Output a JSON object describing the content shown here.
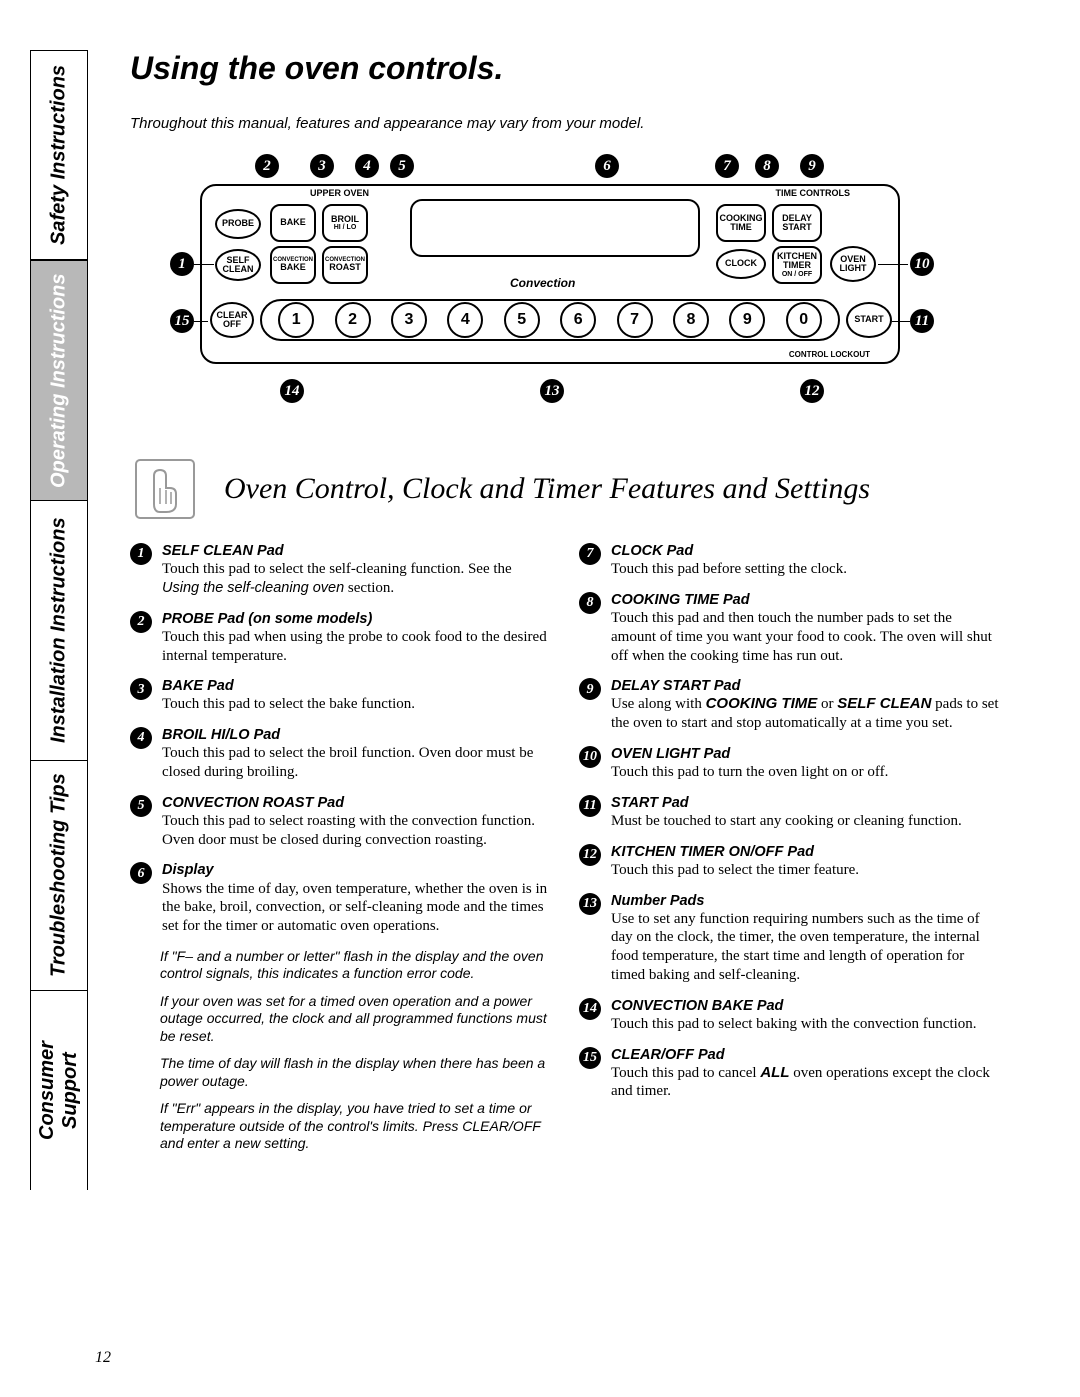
{
  "page": {
    "title": "Using the oven controls.",
    "intro": "Throughout this manual, features and appearance may vary from your model.",
    "section_title": "Oven Control, Clock and Timer Features and Settings",
    "page_number": "12"
  },
  "tabs": {
    "safety": "Safety Instructions",
    "operating": "Operating Instructions",
    "installation": "Installation Instructions",
    "troubleshoot": "Troubleshooting Tips",
    "consumer": "Consumer Support"
  },
  "diagram": {
    "upper_oven_label": "UPPER OVEN",
    "time_controls_label": "TIME CONTROLS",
    "convection_label": "Convection",
    "control_lockout_label": "CONTROL LOCKOUT",
    "buttons": {
      "probe": "PROBE",
      "bake": "BAKE",
      "broil": "BROIL",
      "broil_sub": "HI / LO",
      "self": "SELF",
      "clean": "CLEAN",
      "conv_bake_top": "CONVECTION",
      "conv_bake_bot": "BAKE",
      "conv_roast_top": "CONVECTION",
      "conv_roast_bot": "ROAST",
      "cooking": "COOKING",
      "time": "TIME",
      "delay": "DELAY",
      "start_top": "START",
      "clock": "CLOCK",
      "kitchen": "KITCHEN",
      "timer": "TIMER",
      "onoff": "ON / OFF",
      "oven": "OVEN",
      "light": "LIGHT",
      "clear": "CLEAR",
      "off": "OFF",
      "start": "START"
    },
    "number_pads": [
      "1",
      "2",
      "3",
      "4",
      "5",
      "6",
      "7",
      "8",
      "9",
      "0"
    ],
    "callouts": {
      "c1": "1",
      "c2": "2",
      "c3": "3",
      "c4": "4",
      "c5": "5",
      "c6": "6",
      "c7": "7",
      "c8": "8",
      "c9": "9",
      "c10": "10",
      "c11": "11",
      "c12": "12",
      "c13": "13",
      "c14": "14",
      "c15": "15"
    }
  },
  "items_left": [
    {
      "num": "1",
      "title": "SELF CLEAN Pad",
      "text": "Touch this pad to select the self-cleaning function. See the ",
      "ref": "Using the self-cleaning oven",
      "tail": " section."
    },
    {
      "num": "2",
      "title": "PROBE Pad (on some models)",
      "text": "Touch this pad when using the probe to cook food to the desired internal temperature."
    },
    {
      "num": "3",
      "title": "BAKE Pad",
      "text": "Touch this pad to select the bake function."
    },
    {
      "num": "4",
      "title": "BROIL HI/LO Pad",
      "text": "Touch this pad to select the broil function. Oven door must be closed during broiling."
    },
    {
      "num": "5",
      "title": "CONVECTION ROAST Pad",
      "text": "Touch this pad to select roasting with the convection function. Oven door must be closed during convection roasting."
    },
    {
      "num": "6",
      "title": "Display",
      "text": "Shows the time of day, oven temperature, whether the oven is in the bake, broil, convection, or self-cleaning mode and the times set for the timer or automatic oven operations."
    }
  ],
  "notes": [
    "If \"F– and a number or letter\" flash in the display and the oven control signals, this indicates a function error code.",
    "If your oven was set for a timed oven operation and a power outage occurred, the clock and all programmed functions must be reset.",
    "The time of day will flash in the display when there has been a power outage.",
    "If \"Err\" appears in the display, you have tried to set a time or temperature outside of the control's limits. Press CLEAR/OFF and enter a new setting."
  ],
  "items_right": [
    {
      "num": "7",
      "title": "CLOCK Pad",
      "text": "Touch this pad before setting the clock."
    },
    {
      "num": "8",
      "title": "COOKING TIME Pad",
      "text": "Touch this pad and then touch the number pads to set the amount of time you want your food to cook. The oven will shut off when the cooking time has run out."
    },
    {
      "num": "9",
      "title": "DELAY START Pad",
      "text_pre": "Use along with ",
      "strong1": "COOKING TIME",
      "mid": " or ",
      "strong2": "SELF CLEAN",
      "text_post": " pads to set the oven to start and stop automatically at a time you set."
    },
    {
      "num": "10",
      "title": "OVEN LIGHT Pad",
      "text": "Touch this pad to turn the oven light on or off."
    },
    {
      "num": "11",
      "title": "START Pad",
      "text": "Must be touched to start any cooking or cleaning function."
    },
    {
      "num": "12",
      "title": "KITCHEN TIMER ON/OFF Pad",
      "text": "Touch this pad to select the timer feature."
    },
    {
      "num": "13",
      "title": "Number Pads",
      "text": "Use to set any function requiring numbers such as the time of day on the clock, the timer, the oven temperature, the internal food temperature, the start time and length of operation for timed baking and self-cleaning."
    },
    {
      "num": "14",
      "title": "CONVECTION BAKE Pad",
      "text": "Touch this pad to select baking with the convection function."
    },
    {
      "num": "15",
      "title": "CLEAR/OFF Pad",
      "text_pre": "Touch this pad to cancel ",
      "strong1": "ALL",
      "text_post": "  oven operations except the clock and timer."
    }
  ],
  "style": {
    "callout_bg": "#000000",
    "callout_fg": "#ffffff",
    "tab_gray": "#b8b8b8"
  }
}
